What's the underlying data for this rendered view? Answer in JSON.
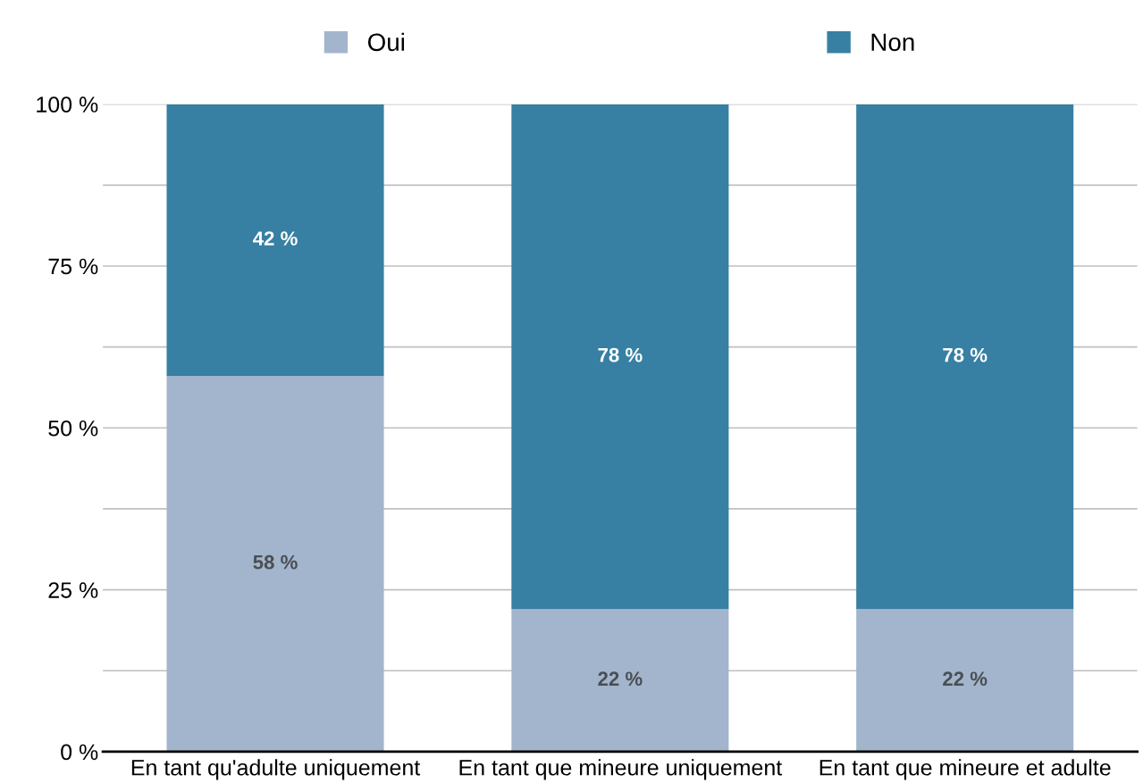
{
  "chart_data": {
    "type": "bar",
    "stacked": true,
    "categories": [
      "En tant qu'adulte uniquement",
      "En tant que mineure uniquement",
      "En tant que mineure et adulte"
    ],
    "series": [
      {
        "name": "Oui",
        "color": "#a3b5cc",
        "values": [
          58,
          22,
          22
        ],
        "value_labels": [
          "58 %",
          "22 %",
          "22 %"
        ]
      },
      {
        "name": "Non",
        "color": "#3780a3",
        "values": [
          42,
          78,
          78
        ],
        "value_labels": [
          "42 %",
          "78 %",
          "78 %"
        ]
      }
    ],
    "ylim": [
      0,
      100
    ],
    "yticks": [
      {
        "value": 0,
        "label": "0 %"
      },
      {
        "value": 12.5,
        "label": null
      },
      {
        "value": 25,
        "label": "25 %"
      },
      {
        "value": 37.5,
        "label": null
      },
      {
        "value": 50,
        "label": "50 %"
      },
      {
        "value": 62.5,
        "label": null
      },
      {
        "value": 75,
        "label": "75 %"
      },
      {
        "value": 87.5,
        "label": null
      },
      {
        "value": 100,
        "label": "100 %"
      }
    ],
    "grid": "y",
    "legend": "top"
  }
}
